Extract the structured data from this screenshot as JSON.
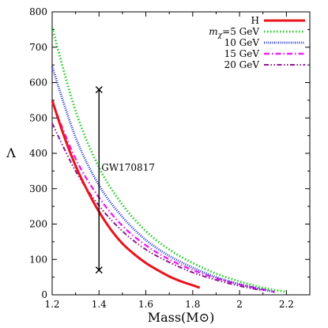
{
  "chart_data": {
    "type": "line",
    "title": "",
    "xlabel": "Mass(M⊙)",
    "ylabel": "Λ",
    "xlim": [
      1.2,
      2.3
    ],
    "ylim": [
      0,
      800
    ],
    "xticks": [
      1.2,
      1.4,
      1.6,
      1.8,
      2.0,
      2.2
    ],
    "xtick_labels": [
      "1.2",
      "1.4",
      "1.6",
      "1.8",
      "2",
      "2.2"
    ],
    "yticks": [
      0,
      100,
      200,
      300,
      400,
      500,
      600,
      700,
      800
    ],
    "ytick_labels": [
      "0",
      "100",
      "200",
      "300",
      "400",
      "500",
      "600",
      "700",
      "800"
    ],
    "grid": false,
    "legend_position": "top-right",
    "legend_title_symbol": "m",
    "legend_title_subscript": "χ",
    "series": [
      {
        "name": "H",
        "color": "#e8141c",
        "dash": "solid",
        "x": [
          1.2,
          1.25,
          1.3,
          1.35,
          1.4,
          1.45,
          1.5,
          1.55,
          1.6,
          1.65,
          1.7,
          1.75,
          1.8,
          1.83
        ],
        "y": [
          550,
          450,
          365,
          295,
          235,
          185,
          145,
          115,
          90,
          70,
          52,
          38,
          27,
          20
        ]
      },
      {
        "name": "=5 GeV",
        "color": "#22cc22",
        "dash": "dotted",
        "x": [
          1.2,
          1.3,
          1.4,
          1.5,
          1.6,
          1.7,
          1.8,
          1.9,
          2.0,
          2.1,
          2.2
        ],
        "y": [
          755,
          520,
          360,
          255,
          180,
          128,
          90,
          60,
          38,
          20,
          8
        ]
      },
      {
        "name": "10 GeV",
        "color": "#2233cc",
        "dash": "dense-dotted",
        "x": [
          1.2,
          1.3,
          1.4,
          1.5,
          1.6,
          1.7,
          1.8,
          1.9,
          2.0,
          2.1,
          2.15
        ],
        "y": [
          645,
          445,
          310,
          220,
          155,
          110,
          77,
          50,
          30,
          15,
          8
        ]
      },
      {
        "name": "15 GeV",
        "color": "#ee22ee",
        "dash": "dash-dot",
        "x": [
          1.2,
          1.3,
          1.4,
          1.5,
          1.6,
          1.7,
          1.8,
          1.9,
          2.0,
          2.1,
          2.15
        ],
        "y": [
          545,
          385,
          275,
          195,
          140,
          100,
          70,
          47,
          29,
          15,
          8
        ]
      },
      {
        "name": "20 GeV",
        "color": "#8a1a8a",
        "dash": "dash-dot-dot",
        "x": [
          1.2,
          1.3,
          1.4,
          1.5,
          1.6,
          1.7,
          1.8,
          1.9,
          2.0,
          2.1
        ],
        "y": [
          485,
          350,
          252,
          180,
          128,
          92,
          63,
          42,
          25,
          12
        ]
      }
    ],
    "annotations": [
      {
        "label": "GW170817",
        "type": "error-bar",
        "x": 1.4,
        "y_low": 70,
        "y_high": 580,
        "label_x": 1.41,
        "label_y": 360
      }
    ]
  }
}
